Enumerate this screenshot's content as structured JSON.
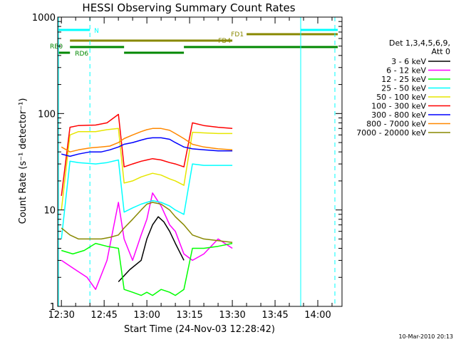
{
  "chart_data": {
    "type": "line",
    "title": "HESSI Observing Summary Count Rates",
    "xlabel": "Start Time (24-Nov-03 12:28:42)",
    "ylabel": "Count Rate (s⁻¹ detector⁻¹)",
    "y_scale": "log",
    "ylim": [
      1,
      1000
    ],
    "xlim": [
      "12:28:42",
      "14:08:30"
    ],
    "x_ticks": [
      "12:30",
      "12:45",
      "13:00",
      "13:15",
      "13:30",
      "13:45",
      "14:00"
    ],
    "y_ticks": [
      "1",
      "10",
      "100",
      "1000"
    ],
    "grid": false,
    "legend_placement": "right",
    "legend_header": [
      "Det 1,3,4,5,6,9,",
      "Att 0"
    ],
    "footer_date": "10-Mar-2010 20:13",
    "series": [
      {
        "name": "3 - 6 keV",
        "color": "#000000",
        "x": [
          "12:50",
          "12:54",
          "12:58",
          "13:00",
          "13:02",
          "13:04",
          "13:06",
          "13:08",
          "13:10",
          "13:13"
        ],
        "values": [
          1.8,
          2.4,
          3.0,
          5.0,
          7.0,
          8.5,
          7.5,
          6.0,
          4.5,
          3.0
        ]
      },
      {
        "name": "6 - 12 keV",
        "color": "#ff00ff",
        "x": [
          "12:30",
          "12:34",
          "12:39",
          "12:42",
          "12:46",
          "12:50",
          "12:52",
          "12:55",
          "12:58",
          "13:00",
          "13:02",
          "13:05",
          "13:08",
          "13:10",
          "13:13",
          "13:16",
          "13:20",
          "13:25",
          "13:30"
        ],
        "values": [
          3.0,
          2.5,
          2.0,
          1.5,
          3.0,
          12.0,
          5.0,
          3.0,
          5.5,
          8.0,
          15.0,
          11.0,
          7.0,
          6.0,
          3.5,
          3.0,
          3.5,
          5.0,
          4.0
        ]
      },
      {
        "name": "12 - 25 keV",
        "color": "#00ff00",
        "x": [
          "12:30",
          "12:34",
          "12:38",
          "12:42",
          "12:46",
          "12:50",
          "12:52",
          "12:55",
          "12:58",
          "13:00",
          "13:02",
          "13:05",
          "13:08",
          "13:10",
          "13:13",
          "13:16",
          "13:20",
          "13:25",
          "13:30"
        ],
        "values": [
          3.8,
          3.5,
          3.8,
          4.5,
          4.2,
          4.0,
          1.5,
          1.4,
          1.3,
          1.4,
          1.3,
          1.5,
          1.4,
          1.3,
          1.5,
          4.0,
          4.0,
          4.2,
          4.5
        ]
      },
      {
        "name": "25 - 50 keV",
        "color": "#00ffff",
        "x": [
          "12:30",
          "12:33",
          "12:36",
          "12:42",
          "12:46",
          "12:50",
          "12:52",
          "12:55",
          "12:58",
          "13:00",
          "13:02",
          "13:05",
          "13:08",
          "13:10",
          "13:13",
          "13:16",
          "13:20",
          "13:25",
          "13:30"
        ],
        "values": [
          5.0,
          32.0,
          31.0,
          30.0,
          31.0,
          33.0,
          9.5,
          10.5,
          11.5,
          12.0,
          12.5,
          12.0,
          11.0,
          10.0,
          9.0,
          30.0,
          29.0,
          29.0,
          29.0
        ]
      },
      {
        "name": "50 - 100 keV",
        "color": "#e6e600",
        "x": [
          "12:30",
          "12:33",
          "12:36",
          "12:42",
          "12:46",
          "12:50",
          "12:52",
          "12:55",
          "12:58",
          "13:00",
          "13:02",
          "13:05",
          "13:08",
          "13:10",
          "13:13",
          "13:16",
          "13:20",
          "13:25",
          "13:30"
        ],
        "values": [
          10.0,
          60.0,
          65.0,
          65.0,
          68.0,
          70.0,
          19.0,
          20.0,
          22.0,
          23.0,
          24.0,
          23.0,
          21.0,
          20.0,
          18.0,
          64.0,
          63.0,
          62.0,
          62.0
        ]
      },
      {
        "name": "100 - 300 keV",
        "color": "#ff0000",
        "x": [
          "12:30",
          "12:33",
          "12:36",
          "12:42",
          "12:46",
          "12:50",
          "12:52",
          "12:55",
          "12:58",
          "13:00",
          "13:02",
          "13:05",
          "13:08",
          "13:10",
          "13:13",
          "13:16",
          "13:20",
          "13:25",
          "13:30"
        ],
        "values": [
          14.0,
          72.0,
          75.0,
          76.0,
          80.0,
          98.0,
          28.0,
          30.0,
          32.0,
          33.0,
          34.0,
          33.0,
          31.0,
          30.0,
          28.0,
          80.0,
          75.0,
          72.0,
          70.0
        ]
      },
      {
        "name": "300 - 800 keV",
        "color": "#0000ff",
        "x": [
          "12:30",
          "12:33",
          "12:36",
          "12:40",
          "12:44",
          "12:47",
          "12:50",
          "12:52",
          "12:55",
          "12:58",
          "13:00",
          "13:02",
          "13:05",
          "13:08",
          "13:10",
          "13:13",
          "13:16",
          "13:20",
          "13:25",
          "13:30"
        ],
        "values": [
          38.0,
          36.0,
          38.0,
          40.0,
          40.0,
          42.0,
          45.0,
          48.0,
          50.0,
          53.0,
          55.0,
          56.0,
          56.0,
          54.0,
          50.0,
          45.0,
          43.0,
          42.0,
          41.0,
          41.0
        ]
      },
      {
        "name": "800 - 7000 keV",
        "color": "#ff8800",
        "x": [
          "12:30",
          "12:33",
          "12:36",
          "12:40",
          "12:44",
          "12:47",
          "12:50",
          "12:52",
          "12:55",
          "12:58",
          "13:00",
          "13:02",
          "13:05",
          "13:08",
          "13:10",
          "13:13",
          "13:16",
          "13:20",
          "13:25",
          "13:30"
        ],
        "values": [
          45.0,
          40.0,
          42.0,
          44.0,
          45.0,
          46.0,
          50.0,
          55.0,
          60.0,
          65.0,
          68.0,
          70.0,
          70.0,
          67.0,
          62.0,
          55.0,
          48.0,
          45.0,
          43.0,
          42.0
        ]
      },
      {
        "name": "7000 - 20000 keV",
        "color": "#888800",
        "x": [
          "12:30",
          "12:33",
          "12:36",
          "12:40",
          "12:44",
          "12:47",
          "12:50",
          "12:52",
          "12:55",
          "12:58",
          "13:00",
          "13:02",
          "13:05",
          "13:08",
          "13:10",
          "13:13",
          "13:16",
          "13:20",
          "13:25",
          "13:30"
        ],
        "values": [
          6.5,
          5.5,
          5.0,
          5.0,
          5.0,
          5.2,
          5.5,
          6.5,
          8.0,
          10.0,
          11.5,
          12.0,
          11.5,
          10.0,
          8.5,
          7.0,
          5.5,
          5.0,
          4.8,
          4.6
        ]
      }
    ],
    "flag_bars": [
      {
        "label": "N",
        "color": "#00ffff",
        "segments": [
          [
            "12:29",
            "12:40"
          ],
          [
            "13:54",
            "14:07"
          ]
        ]
      },
      {
        "label": "FD1",
        "color": "#888800",
        "segments": [
          [
            "13:35",
            "14:07"
          ]
        ]
      },
      {
        "label": "FD4",
        "color": "#888800",
        "segments": [
          [
            "12:33",
            "13:30"
          ]
        ]
      },
      {
        "label": "RB0",
        "color": "#008800",
        "segments": [
          [
            "12:33",
            "12:52"
          ],
          [
            "13:13",
            "14:07"
          ]
        ]
      },
      {
        "label": "RD6",
        "color": "#008800",
        "segments": [
          [
            "12:29",
            "12:33"
          ],
          [
            "12:52",
            "13:13"
          ]
        ]
      }
    ],
    "vertical_markers": [
      {
        "x": "12:29",
        "color": "#00ffff",
        "style": "solid"
      },
      {
        "x": "12:40",
        "color": "#00ffff",
        "style": "dashed"
      },
      {
        "x": "13:54",
        "color": "#00ffff",
        "style": "solid"
      },
      {
        "x": "14:06",
        "color": "#00ffff",
        "style": "dashed"
      }
    ]
  }
}
